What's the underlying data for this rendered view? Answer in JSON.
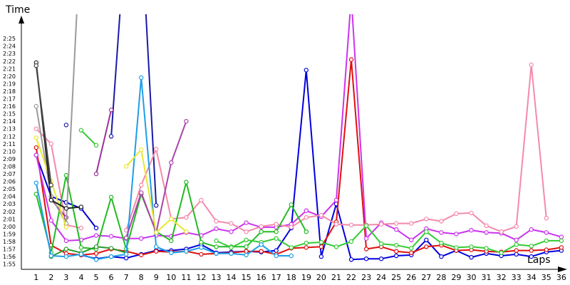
{
  "chart_data": {
    "type": "line",
    "xlabel": "Laps",
    "ylabel": "Time",
    "x": [
      1,
      2,
      3,
      4,
      5,
      6,
      7,
      8,
      9,
      10,
      11,
      12,
      13,
      14,
      15,
      16,
      17,
      18,
      19,
      20,
      21,
      22,
      23,
      24,
      25,
      26,
      27,
      28,
      29,
      30,
      31,
      32,
      33,
      34,
      35,
      36
    ],
    "xlim": [
      0,
      37
    ],
    "ylim": [
      114,
      147
    ],
    "ytick_values": [
      115,
      116,
      117,
      118,
      119,
      120,
      121,
      122,
      123,
      124,
      125,
      126,
      127,
      128,
      129,
      130,
      131,
      132,
      133,
      134,
      135,
      136,
      137,
      138,
      139,
      140,
      141,
      142,
      143,
      144,
      145
    ],
    "ytick_labels": [
      "1:55",
      "1:56",
      "1:57",
      "1:58",
      "1:59",
      "2:00",
      "2:01",
      "2:02",
      "2:03",
      "2:04",
      "2:05",
      "2:06",
      "2:07",
      "2:08",
      "2:09",
      "2:10",
      "2:11",
      "2:12",
      "2:13",
      "2:14",
      "2:15",
      "2:16",
      "2:17",
      "2:18",
      "2:19",
      "2:20",
      "2:21",
      "2:22",
      "2:23",
      "2:24",
      "2:25"
    ],
    "grid": false,
    "series": [
      {
        "color": "#0000cc",
        "values": [
          129.5,
          124,
          123.2,
          122.4,
          119.8,
          null,
          null,
          null,
          null,
          null,
          null,
          null,
          null,
          null,
          null,
          null,
          null,
          null,
          null,
          null,
          null,
          null,
          null,
          null,
          null,
          null,
          null,
          null,
          null,
          null,
          null,
          null,
          null,
          null,
          null,
          null
        ]
      },
      {
        "color": "#1a1aa8",
        "values": [
          null,
          null,
          133.5,
          null,
          null,
          132,
          160,
          160,
          122.8,
          null,
          null,
          null,
          null,
          null,
          null,
          null,
          null,
          null,
          null,
          null,
          null,
          null,
          null,
          null,
          null,
          null,
          null,
          null,
          null,
          null,
          null,
          null,
          null,
          null,
          null,
          null
        ]
      },
      {
        "color": "#0000dd",
        "values": [
          null,
          null,
          null,
          116.2,
          115.7,
          116,
          115.8,
          116.3,
          116.8,
          116.8,
          117,
          117.6,
          116.5,
          116.6,
          116.7,
          116.6,
          116.8,
          119.8,
          140.8,
          116,
          123,
          115.6,
          115.7,
          115.7,
          116.1,
          116.2,
          118.2,
          116,
          116.8,
          115.9,
          116.4,
          116.1,
          116.3,
          116,
          116.6,
          116.8
        ]
      },
      {
        "color": "#e01010",
        "values": [
          130.5,
          117.5,
          116.4,
          116.2,
          116.4,
          117,
          116.7,
          116.2,
          116.7,
          116.6,
          116.7,
          116.3,
          116.4,
          116.5,
          116.7,
          116.7,
          116.3,
          117.1,
          117.2,
          117.3,
          120.6,
          142.2,
          117,
          117.3,
          116.7,
          116.5,
          117.3,
          117.5,
          116.8,
          116.9,
          116.7,
          116.6,
          116.8,
          116.8,
          116.9,
          117.2
        ]
      },
      {
        "color": "#cc33ee",
        "values": [
          129.5,
          120.8,
          118.1,
          118.2,
          118.8,
          118.7,
          118.4,
          118.4,
          118.8,
          118.7,
          119.2,
          118.8,
          119.7,
          119.3,
          120.5,
          119.9,
          119.9,
          120.3,
          122.1,
          121.3,
          123.5,
          150.5,
          118.4,
          120.5,
          119.6,
          118.2,
          119.7,
          119.2,
          119,
          119.5,
          119.2,
          119.1,
          118.2,
          119.6,
          119.2,
          118.6
        ]
      },
      {
        "color": "#f48aaa",
        "values": [
          133,
          131,
          120.2,
          119.8,
          null,
          null,
          119.5,
          125.5,
          130.3,
          121,
          121.2,
          123.5,
          120.7,
          120.4,
          119.3,
          120,
          120.3,
          119.9,
          121.2,
          121.5,
          120.3,
          120.2,
          120.2,
          120.3,
          120.4,
          120.4,
          121,
          120.7,
          121.7,
          121.8,
          120.1,
          119.3,
          120,
          141.5,
          121.1,
          null
        ]
      },
      {
        "color": "#22bb22",
        "values": [
          124.3,
          116.5,
          126.8,
          117.2,
          117,
          123.9,
          117,
          124.3,
          119.3,
          118.1,
          125.9,
          117.9,
          117.3,
          117.3,
          117.3,
          119.3,
          119.3,
          122.9,
          119.3,
          null,
          null,
          null,
          null,
          null,
          null,
          null,
          null,
          null,
          null,
          null,
          null,
          null,
          null,
          null,
          null,
          null
        ]
      },
      {
        "color": "#33cc33",
        "values": [
          null,
          null,
          null,
          132.8,
          130.8,
          null,
          null,
          null,
          null,
          null,
          null,
          null,
          118.1,
          117.2,
          118.2,
          117.9,
          118.4,
          117.2,
          117.8,
          117.9,
          117.3,
          118,
          120.1,
          117.7,
          117.5,
          117.1,
          119.3,
          117.8,
          117.2,
          117.3,
          117.1,
          116.5,
          117.6,
          117.4,
          118.1,
          118.1
        ]
      },
      {
        "color": "#2a9a2a",
        "values": [
          null,
          116,
          117,
          116.5,
          117.3,
          117.1,
          116.5,
          null,
          null,
          null,
          null,
          null,
          null,
          null,
          null,
          null,
          null,
          null,
          null,
          null,
          null,
          null,
          null,
          null,
          null,
          null,
          null,
          null,
          null,
          null,
          null,
          null,
          null,
          null,
          null,
          null
        ]
      },
      {
        "color": "#1e9ee8",
        "values": [
          125.8,
          116.1,
          116.0,
          116.3,
          115.6,
          116,
          116.3,
          139.8,
          117.3,
          116.5,
          116.7,
          117.2,
          116.4,
          116.4,
          116.2,
          117.6,
          116.1,
          116.1,
          null,
          null,
          null,
          null,
          null,
          null,
          null,
          null,
          null,
          null,
          null,
          null,
          null,
          null,
          null,
          null,
          null,
          null
        ]
      },
      {
        "color": "#993399",
        "values": [
          null,
          123.6,
          121.2,
          null,
          127,
          135.5,
          null,
          null,
          null,
          null,
          null,
          null,
          null,
          null,
          null,
          null,
          null,
          null,
          null,
          null,
          null,
          null,
          null,
          null,
          null,
          null,
          null,
          null,
          null,
          null,
          null,
          null,
          null,
          null,
          null,
          null
        ]
      },
      {
        "color": "#aa44aa",
        "values": [
          null,
          null,
          null,
          null,
          null,
          null,
          118.5,
          124.5,
          119.2,
          128.5,
          134,
          null,
          null,
          null,
          null,
          null,
          null,
          null,
          null,
          null,
          null,
          null,
          null,
          null,
          null,
          null,
          null,
          null,
          null,
          null,
          null,
          null,
          null,
          null,
          null,
          null
        ]
      },
      {
        "color": "#9b9b9b",
        "values": [
          136,
          124,
          120.4,
          160,
          null,
          null,
          null,
          null,
          null,
          null,
          null,
          null,
          null,
          null,
          null,
          null,
          null,
          null,
          null,
          null,
          null,
          null,
          null,
          null,
          null,
          null,
          null,
          null,
          null,
          null,
          null,
          null,
          null,
          null,
          null,
          null
        ]
      },
      {
        "color": "#e8e830",
        "values": [
          131.8,
          126,
          119.9,
          null,
          null,
          null,
          128,
          130.2,
          119.2,
          121,
          119.3,
          null,
          null,
          null,
          null,
          null,
          null,
          null,
          null,
          null,
          null,
          null,
          null,
          null,
          null,
          null,
          null,
          null,
          null,
          null,
          null,
          null,
          null,
          null,
          null,
          null
        ]
      },
      {
        "color": "#222222",
        "values": [
          141.8,
          123.5,
          122.4,
          122.6,
          null,
          null,
          null,
          null,
          null,
          null,
          null,
          null,
          null,
          null,
          null,
          null,
          null,
          null,
          null,
          null,
          null,
          null,
          null,
          null,
          null,
          null,
          null,
          null,
          null,
          null,
          null,
          null,
          null,
          null,
          null,
          null
        ]
      },
      {
        "color": "#444444",
        "values": [
          141.4,
          125.5,
          null,
          null,
          null,
          null,
          null,
          null,
          null,
          null,
          null,
          null,
          null,
          null,
          null,
          null,
          null,
          null,
          null,
          null,
          null,
          null,
          null,
          null,
          null,
          null,
          null,
          null,
          null,
          null,
          null,
          null,
          null,
          null,
          null,
          null
        ]
      }
    ]
  }
}
